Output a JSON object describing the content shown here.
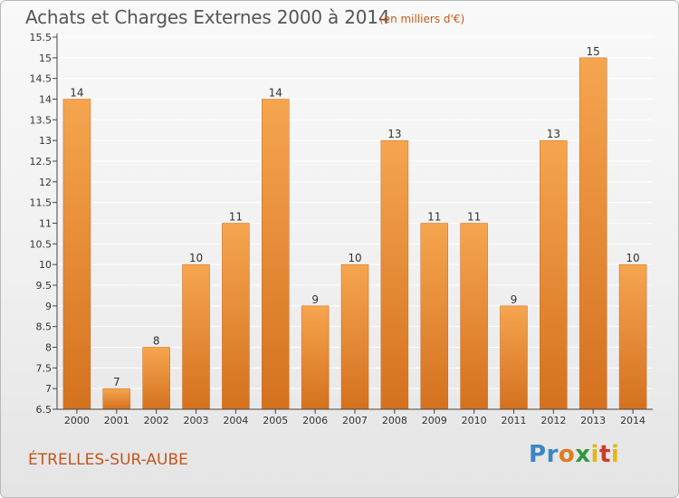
{
  "header": {
    "title": "Achats et Charges Externes 2000 à 2014",
    "subtitle": "(en milliers d'€)"
  },
  "footer": {
    "city": "ÉTRELLES-SUR-AUBE",
    "logo_text": "Proxiti"
  },
  "colors": {
    "bar_top": "#f6a54f",
    "bar_bottom": "#d4711f",
    "bar_edge": "#c8691d",
    "axis": "#444444",
    "gridline": "#ffffff",
    "text": "#333333"
  },
  "chart_data": {
    "type": "bar",
    "categories": [
      "2000",
      "2001",
      "2002",
      "2003",
      "2004",
      "2005",
      "2006",
      "2007",
      "2008",
      "2009",
      "2010",
      "2011",
      "2012",
      "2013",
      "2014"
    ],
    "values": [
      14,
      7,
      8,
      10,
      11,
      14,
      9,
      10,
      13,
      11,
      11,
      9,
      13,
      15,
      10
    ],
    "data_labels": [
      "14",
      "7",
      "8",
      "10",
      "11",
      "14",
      "9",
      "10",
      "13",
      "11",
      "11",
      "9",
      "13",
      "15",
      "10"
    ],
    "yticks": [
      "6.5",
      "7",
      "7.5",
      "8",
      "8.5",
      "9",
      "9.5",
      "10",
      "10.5",
      "11",
      "11.5",
      "12",
      "12.5",
      "13",
      "13.5",
      "14",
      "14.5",
      "15",
      "15.5"
    ],
    "ylim": [
      6.5,
      15.5
    ],
    "xlabel": "",
    "ylabel": "",
    "grid": true,
    "legend": "none"
  }
}
